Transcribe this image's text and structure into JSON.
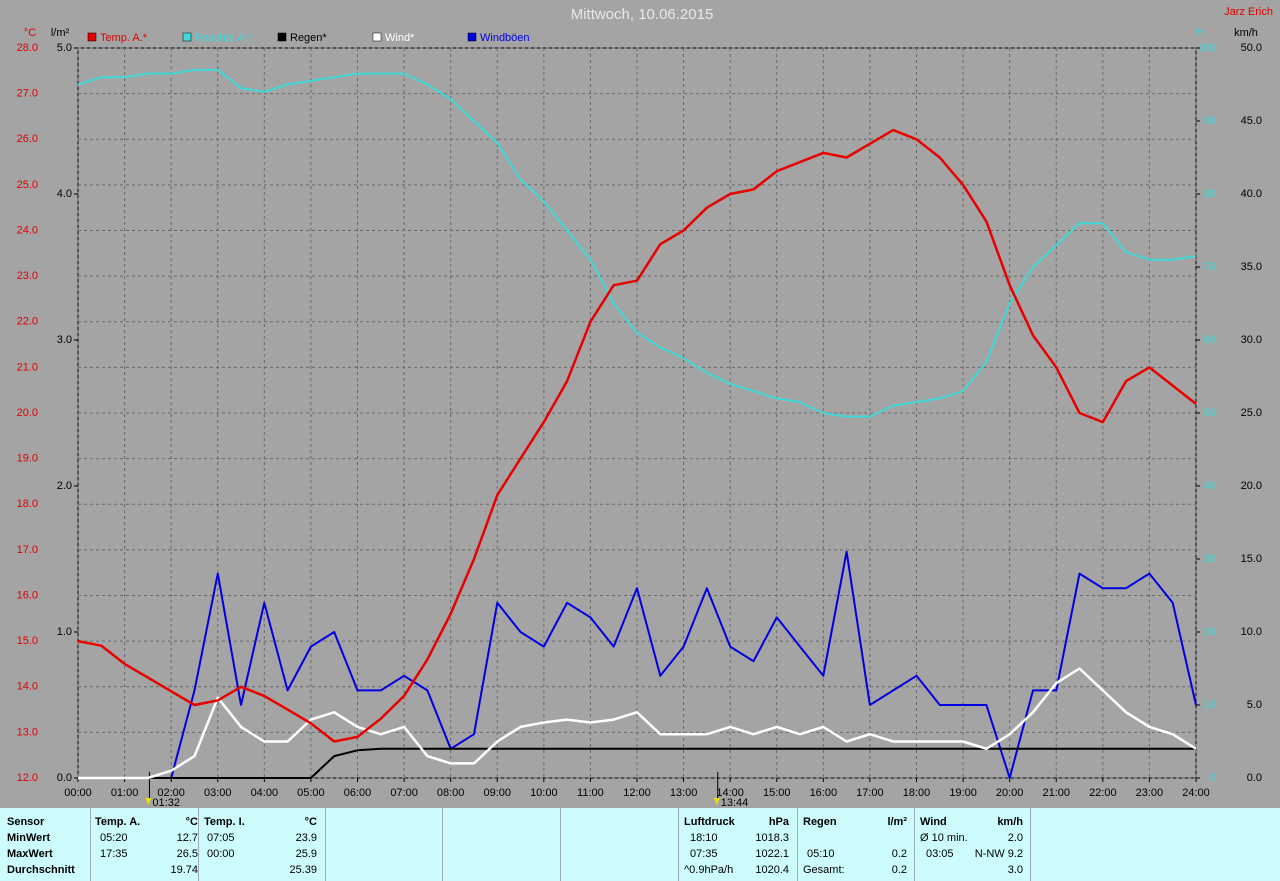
{
  "chart_data": {
    "type": "line",
    "title": "Mittwoch, 10.06.2015",
    "author": "Jarz Erich",
    "axis_units": {
      "temp": "°C",
      "rain": "l/m²",
      "humidity": "%",
      "wind": "km/h"
    },
    "x": [
      0,
      0.5,
      1,
      1.5,
      2,
      2.5,
      3,
      3.5,
      4,
      4.5,
      5,
      5.5,
      6,
      6.5,
      7,
      7.5,
      8,
      8.5,
      9,
      9.5,
      10,
      10.5,
      11,
      11.5,
      12,
      12.5,
      13,
      13.5,
      14,
      14.5,
      15,
      15.5,
      16,
      16.5,
      17,
      17.5,
      18,
      18.5,
      19,
      19.5,
      20,
      20.5,
      21,
      21.5,
      22,
      22.5,
      23,
      23.5,
      24
    ],
    "xlim": [
      0,
      24
    ],
    "xticks": [
      {
        "value": 0,
        "label": "00:00"
      },
      {
        "value": 1,
        "label": "01:00"
      },
      {
        "value": 2,
        "label": "02:00"
      },
      {
        "value": 3,
        "label": "03:00"
      },
      {
        "value": 4,
        "label": "04:00"
      },
      {
        "value": 5,
        "label": "05:00"
      },
      {
        "value": 6,
        "label": "06:00"
      },
      {
        "value": 7,
        "label": "07:00"
      },
      {
        "value": 8,
        "label": "08:00"
      },
      {
        "value": 9,
        "label": "09:00"
      },
      {
        "value": 10,
        "label": "10:00"
      },
      {
        "value": 11,
        "label": "11:00"
      },
      {
        "value": 12,
        "label": "12:00"
      },
      {
        "value": 13,
        "label": "13:00"
      },
      {
        "value": 14,
        "label": "14:00"
      },
      {
        "value": 15,
        "label": "15:00"
      },
      {
        "value": 16,
        "label": "16:00"
      },
      {
        "value": 17,
        "label": "17:00"
      },
      {
        "value": 18,
        "label": "18:00"
      },
      {
        "value": 19,
        "label": "19:00"
      },
      {
        "value": 20,
        "label": "20:00"
      },
      {
        "value": 21,
        "label": "21:00"
      },
      {
        "value": 22,
        "label": "22:00"
      },
      {
        "value": 23,
        "label": "23:00"
      },
      {
        "value": 24,
        "label": "24:00"
      }
    ],
    "markers": [
      {
        "value": 1.5333,
        "label": "01:32"
      },
      {
        "value": 13.7333,
        "label": "13:44"
      }
    ],
    "ylim": [
      12,
      28
    ],
    "yticks": [
      {
        "value": 12,
        "label": "12.0"
      },
      {
        "value": 13,
        "label": "13.0"
      },
      {
        "value": 14,
        "label": "14.0"
      },
      {
        "value": 15,
        "label": "15.0"
      },
      {
        "value": 16,
        "label": "16.0"
      },
      {
        "value": 17,
        "label": "17.0"
      },
      {
        "value": 18,
        "label": "18.0"
      },
      {
        "value": 19,
        "label": "19.0"
      },
      {
        "value": 20,
        "label": "20.0"
      },
      {
        "value": 21,
        "label": "21.0"
      },
      {
        "value": 22,
        "label": "22.0"
      },
      {
        "value": 23,
        "label": "23.0"
      },
      {
        "value": 24,
        "label": "24.0"
      },
      {
        "value": 25,
        "label": "25.0"
      },
      {
        "value": 26,
        "label": "26.0"
      },
      {
        "value": 27,
        "label": "27.0"
      },
      {
        "value": 28,
        "label": "28.0"
      }
    ],
    "y2lim": [
      0,
      100
    ],
    "y2ticks": [
      0,
      10,
      20,
      30,
      40,
      50,
      60,
      70,
      80,
      90,
      100
    ],
    "y3lim": [
      0,
      5
    ],
    "y3ticks": [
      {
        "value": 0,
        "label": "0.0"
      },
      {
        "value": 1,
        "label": "1.0"
      },
      {
        "value": 2,
        "label": "2.0"
      },
      {
        "value": 3,
        "label": "3.0"
      },
      {
        "value": 4,
        "label": "4.0"
      },
      {
        "value": 5,
        "label": "5.0"
      }
    ],
    "y4lim": [
      0,
      50
    ],
    "y4ticks": [
      {
        "value": 0,
        "label": "0.0"
      },
      {
        "value": 5,
        "label": "5.0"
      },
      {
        "value": 10,
        "label": "10.0"
      },
      {
        "value": 15,
        "label": "15.0"
      },
      {
        "value": 20,
        "label": "20.0"
      },
      {
        "value": 25,
        "label": "25.0"
      },
      {
        "value": 30,
        "label": "30.0"
      },
      {
        "value": 35,
        "label": "35.0"
      },
      {
        "value": 40,
        "label": "40.0"
      },
      {
        "value": 45,
        "label": "45.0"
      },
      {
        "value": 50,
        "label": "50.0"
      }
    ],
    "grid": true,
    "series": [
      {
        "name": "Temp. A.*",
        "color": "#e80000",
        "axis": "y",
        "values": [
          15.0,
          14.9,
          14.5,
          14.2,
          13.9,
          13.6,
          13.7,
          14.0,
          13.8,
          13.5,
          13.2,
          12.8,
          12.9,
          13.3,
          13.8,
          14.6,
          15.6,
          16.8,
          18.2,
          19.0,
          19.8,
          20.7,
          22.0,
          22.8,
          22.9,
          23.7,
          24.0,
          24.5,
          24.8,
          24.9,
          25.3,
          25.5,
          25.7,
          25.6,
          25.9,
          26.2,
          26.0,
          25.6,
          25.0,
          24.2,
          22.8,
          21.7,
          21.0,
          20.0,
          19.8,
          20.7,
          21.0,
          20.6,
          20.2
        ]
      },
      {
        "name": "Feuchte A.*",
        "color": "#40d8d8",
        "axis": "y2",
        "values": [
          95,
          96,
          96,
          96.5,
          96.5,
          97,
          97,
          94.5,
          94,
          95,
          95.5,
          96,
          96.5,
          96.5,
          96.5,
          95,
          93,
          90,
          87,
          82,
          79,
          75,
          71,
          65,
          61,
          59,
          57.5,
          55.5,
          54,
          53,
          52,
          51.5,
          50,
          49.5,
          49.5,
          51,
          51.5,
          52,
          53,
          57,
          65,
          70,
          73,
          76,
          76,
          72,
          71,
          71,
          71.5
        ]
      },
      {
        "name": "Regen*",
        "color": "#000000",
        "axis": "y3",
        "values": [
          0,
          0,
          0,
          0,
          0,
          0,
          0,
          0,
          0,
          0,
          0,
          0.15,
          0.19,
          0.2,
          0.2,
          0.2,
          0.2,
          0.2,
          0.2,
          0.2,
          0.2,
          0.2,
          0.2,
          0.2,
          0.2,
          0.2,
          0.2,
          0.2,
          0.2,
          0.2,
          0.2,
          0.2,
          0.2,
          0.2,
          0.2,
          0.2,
          0.2,
          0.2,
          0.2,
          0.2,
          0.2,
          0.2,
          0.2,
          0.2,
          0.2,
          0.2,
          0.2,
          0.2,
          0.2
        ]
      },
      {
        "name": "Wind*",
        "color": "#ffffff",
        "axis": "y4",
        "values": [
          0,
          0,
          0,
          0,
          0.5,
          1.5,
          5.5,
          3.5,
          2.5,
          2.5,
          4,
          4.5,
          3.5,
          3,
          3.5,
          1.5,
          1,
          1,
          2.5,
          3.5,
          3.8,
          4,
          3.8,
          4,
          4.5,
          3,
          3,
          3,
          3.5,
          3,
          3.5,
          3,
          3.5,
          2.5,
          3,
          2.5,
          2.5,
          2.5,
          2.5,
          2,
          3,
          4.5,
          6.5,
          7.5,
          6,
          4.5,
          3.5,
          3,
          2
        ]
      },
      {
        "name": "Windböen",
        "color": "#0000e0",
        "axis": "y4",
        "values": [
          0,
          0,
          0,
          0,
          0,
          6,
          14,
          5,
          12,
          6,
          9,
          10,
          6,
          6,
          7,
          6,
          2,
          3,
          12,
          10,
          9,
          12,
          11,
          9,
          13,
          7,
          9,
          13,
          9,
          8,
          11,
          9,
          7,
          15.5,
          5,
          6,
          7,
          5,
          5,
          5,
          0,
          6,
          6,
          14,
          13,
          13,
          14,
          12,
          5
        ]
      }
    ]
  },
  "stats": {
    "headers": {
      "sensor": "Sensor",
      "temp_a": "Temp. A.",
      "temp_a_unit": "°C",
      "temp_i": "Temp. I.",
      "temp_i_unit": "°C",
      "pressure": "Luftdruck",
      "pressure_unit": "hPa",
      "rain": "Regen",
      "rain_unit": "l/m²",
      "wind": "Wind",
      "wind_unit": "km/h"
    },
    "min": {
      "label": "MinWert",
      "temp_a_time": "05:20",
      "temp_a": "12.7",
      "temp_i_time": "07:05",
      "temp_i": "23.9",
      "pressure_time": "18:10",
      "pressure": "1018.3",
      "wind_label": "Ø 10 min.",
      "wind": "2.0"
    },
    "max": {
      "label": "MaxWert",
      "temp_a_time": "17:35",
      "temp_a": "26.5",
      "temp_i_time": "00:00",
      "temp_i": "25.9",
      "pressure_time": "07:35",
      "pressure": "1022.1",
      "rain_time": "05:10",
      "rain": "0.2",
      "wind_time": "03:05",
      "wind": "N-NW 9.2"
    },
    "avg": {
      "label": "Durchschnitt",
      "temp_a": "19.74",
      "temp_i": "25.39",
      "pressure_label": "^0.9hPa/h",
      "pressure": "1020.4",
      "rain_label": "Gesamt:",
      "rain": "0.2",
      "wind": "3.0"
    }
  }
}
